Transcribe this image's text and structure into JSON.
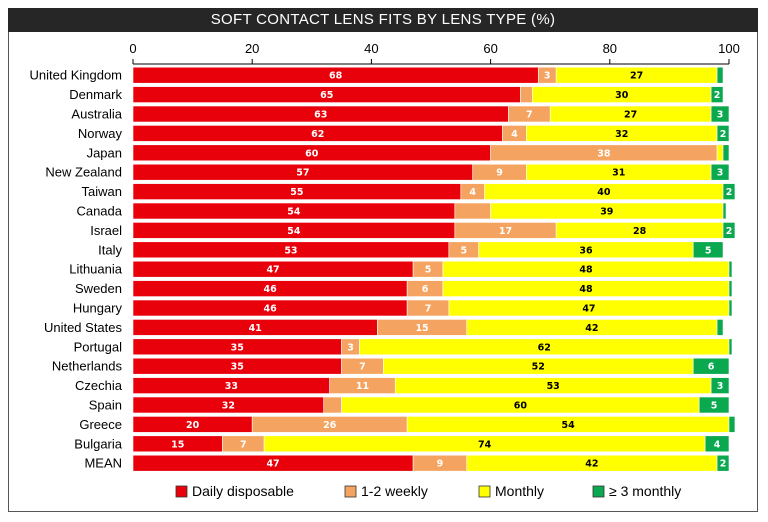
{
  "chart_data": {
    "type": "bar",
    "orientation": "horizontal",
    "stacked": true,
    "title": "SOFT CONTACT LENS FITS BY LENS TYPE (%)",
    "xlim": [
      0,
      100
    ],
    "xticks": [
      0,
      20,
      40,
      60,
      80,
      100
    ],
    "categories": [
      "United Kingdom",
      "Denmark",
      "Australia",
      "Norway",
      "Japan",
      "New Zealand",
      "Taiwan",
      "Canada",
      "Israel",
      "Italy",
      "Lithuania",
      "Sweden",
      "Hungary",
      "United States",
      "Portugal",
      "Netherlands",
      "Czechia",
      "Spain",
      "Greece",
      "Bulgaria",
      "MEAN"
    ],
    "series": [
      {
        "name": "Daily disposable",
        "color": "#e8000b",
        "label_color": "#ffffff",
        "values": [
          68,
          65,
          63,
          62,
          60,
          57,
          55,
          54,
          54,
          53,
          47,
          46,
          46,
          41,
          35,
          35,
          33,
          32,
          20,
          15,
          47
        ]
      },
      {
        "name": "1-2 weekly",
        "color": "#f4a460",
        "label_color": "#ffffff",
        "values": [
          3,
          2,
          7,
          4,
          38,
          9,
          4,
          6,
          17,
          5,
          5,
          6,
          7,
          15,
          3,
          7,
          11,
          3,
          26,
          7,
          9
        ]
      },
      {
        "name": "Monthly",
        "color": "#ffff00",
        "label_color": "#000000",
        "values": [
          27,
          30,
          27,
          32,
          1,
          31,
          40,
          39,
          28,
          36,
          48,
          48,
          47,
          42,
          62,
          52,
          53,
          60,
          54,
          74,
          42
        ]
      },
      {
        "name": "≥ 3 monthly",
        "color": "#0aa84f",
        "label_color": "#ffffff",
        "values": [
          1,
          2,
          3,
          2,
          1,
          3,
          2,
          0.5,
          2,
          5,
          0.5,
          0.5,
          0.5,
          1,
          0.5,
          6,
          3,
          5,
          1,
          4,
          2
        ]
      }
    ],
    "data_labels": [
      [
        "68",
        "3",
        "27",
        ""
      ],
      [
        "65",
        "",
        "30",
        "2"
      ],
      [
        "63",
        "7",
        "27",
        "3"
      ],
      [
        "62",
        "4",
        "32",
        "2"
      ],
      [
        "60",
        "38",
        "",
        ""
      ],
      [
        "57",
        "9",
        "31",
        "3"
      ],
      [
        "55",
        "4",
        "40",
        "2"
      ],
      [
        "54",
        "",
        "39",
        ""
      ],
      [
        "54",
        "17",
        "28",
        "2"
      ],
      [
        "53",
        "5",
        "36",
        "5"
      ],
      [
        "47",
        "5",
        "48",
        ""
      ],
      [
        "46",
        "6",
        "48",
        ""
      ],
      [
        "46",
        "7",
        "47",
        ""
      ],
      [
        "41",
        "15",
        "42",
        ""
      ],
      [
        "35",
        "3",
        "62",
        ""
      ],
      [
        "35",
        "7",
        "52",
        "6"
      ],
      [
        "33",
        "11",
        "53",
        "3"
      ],
      [
        "32",
        "",
        "60",
        "5"
      ],
      [
        "20",
        "26",
        "54",
        ""
      ],
      [
        "15",
        "7",
        "74",
        "4"
      ],
      [
        "47",
        "9",
        "42",
        "2"
      ]
    ],
    "legend": [
      "Daily disposable",
      "1-2 weekly",
      "Monthly",
      "≥ 3 monthly"
    ],
    "legend_position": "bottom"
  }
}
